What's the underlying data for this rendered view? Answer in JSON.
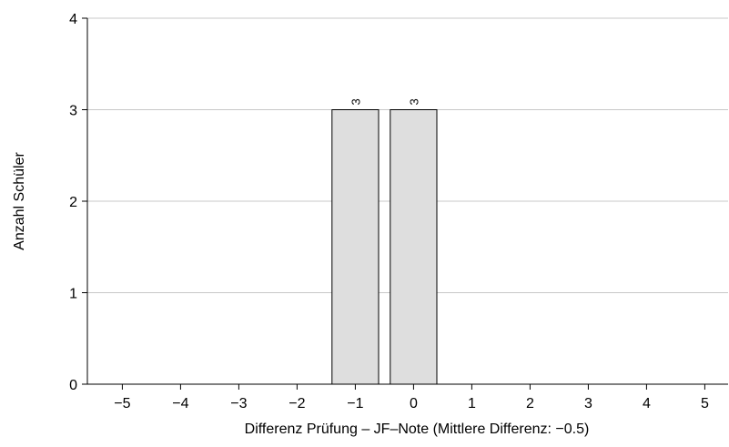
{
  "chart_data": {
    "type": "bar",
    "xlabel": "Differenz Prüfung – JF–Note (Mittlere Differenz: −0.5)",
    "ylabel": "Anzahl Schüler",
    "x": [
      -1,
      0
    ],
    "values": [
      3,
      3
    ],
    "data_labels": [
      "3",
      "3"
    ],
    "xlim": [
      -5.6,
      5.4
    ],
    "ylim": [
      0,
      4
    ],
    "xticks": [
      -5,
      -4,
      -3,
      -2,
      -1,
      0,
      1,
      2,
      3,
      4,
      5
    ],
    "xtick_labels": [
      "−5",
      "−4",
      "−3",
      "−2",
      "−1",
      "0",
      "1",
      "2",
      "3",
      "4",
      "5"
    ],
    "yticks": [
      0,
      1,
      2,
      3,
      4
    ],
    "ytick_labels": [
      "0",
      "1",
      "2",
      "3",
      "4"
    ],
    "bar_width": 0.8,
    "grid": "horizontal",
    "colors": {
      "bar_fill": "#dedede",
      "bar_stroke": "#000000",
      "grid": "#c8c8c8",
      "axis": "#000000"
    }
  }
}
